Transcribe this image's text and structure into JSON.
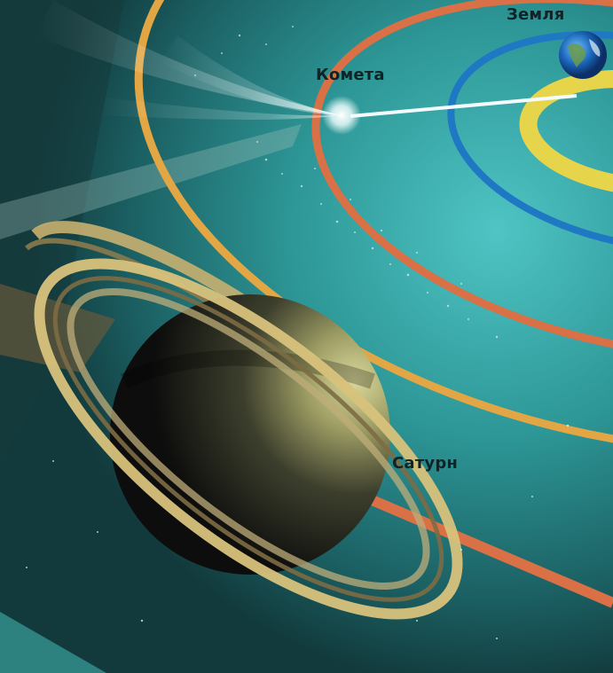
{
  "labels": {
    "earth": "Земля",
    "comet": "Комета",
    "saturn": "Сатурн"
  },
  "colors": {
    "background_dark": "#123a3c",
    "background_teal": "#2e9a9a",
    "orbit_outer": "#e3a645",
    "orbit_middle": "#d97046",
    "orbit_inner": "#1f78c4",
    "orbit_sun": "#e6d54b",
    "label_text": "#0f2426"
  },
  "icons": {
    "earth": "earth-globe-icon",
    "comet": "comet-icon",
    "saturn": "saturn-planet-icon"
  }
}
